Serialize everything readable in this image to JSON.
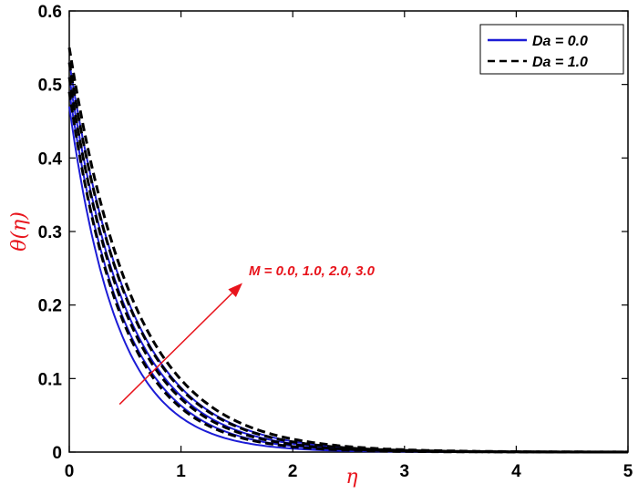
{
  "chart_data": {
    "type": "line",
    "xlabel": "η",
    "ylabel": "θ(η)",
    "xlim": [
      0,
      5
    ],
    "ylim": [
      0,
      0.6
    ],
    "xticks": [
      "0",
      "1",
      "2",
      "3",
      "4",
      "5"
    ],
    "yticks": [
      "0",
      "0.1",
      "0.2",
      "0.3",
      "0.4",
      "0.5",
      "0.6"
    ],
    "grid": false,
    "legend_position": "top-right",
    "legend": [
      {
        "label": "Da = 0.0",
        "style": "solid",
        "color": "#1c1cd6"
      },
      {
        "label": "Da = 1.0",
        "style": "dashed",
        "color": "#000000"
      }
    ],
    "annotation": {
      "text": "M = 0.0, 1.0, 2.0, 3.0",
      "color": "#e8141c",
      "arrow_from": [
        0.45,
        0.065
      ],
      "arrow_to": [
        1.55,
        0.23
      ]
    },
    "series": [
      {
        "group": "Da = 0.0",
        "M": 0.0,
        "theta0": 0.47,
        "decay": 2.3
      },
      {
        "group": "Da = 0.0",
        "M": 1.0,
        "theta0": 0.49,
        "decay": 2.05
      },
      {
        "group": "Da = 0.0",
        "M": 2.0,
        "theta0": 0.51,
        "decay": 1.9
      },
      {
        "group": "Da = 0.0",
        "M": 3.0,
        "theta0": 0.53,
        "decay": 1.8
      },
      {
        "group": "Da = 1.0",
        "M": 0.0,
        "theta0": 0.49,
        "decay": 2.1
      },
      {
        "group": "Da = 1.0",
        "M": 1.0,
        "theta0": 0.51,
        "decay": 1.95
      },
      {
        "group": "Da = 1.0",
        "M": 2.0,
        "theta0": 0.53,
        "decay": 1.82
      },
      {
        "group": "Da = 1.0",
        "M": 3.0,
        "theta0": 0.55,
        "decay": 1.72
      }
    ]
  }
}
